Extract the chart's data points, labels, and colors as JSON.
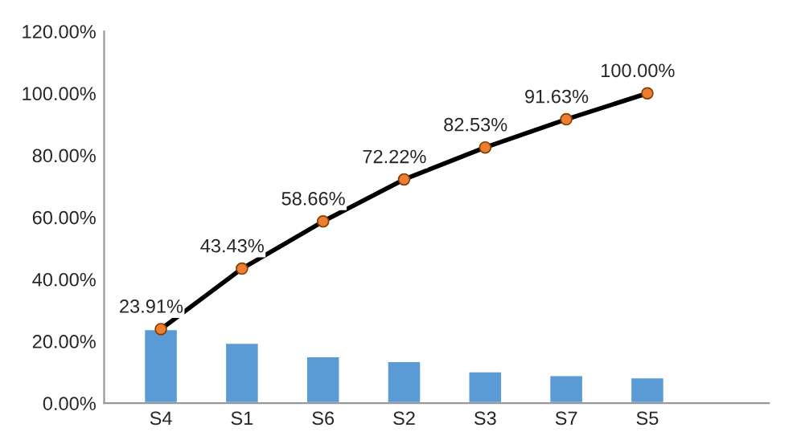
{
  "chart_data": {
    "type": "bar",
    "categories": [
      "S4",
      "S1",
      "S6",
      "S2",
      "S3",
      "S7",
      "S5",
      null
    ],
    "series": [
      {
        "color": "#5b9bd5",
        "values": [
          23.9,
          19.5,
          15.2,
          13.6,
          10.3,
          9.1,
          8.4,
          null
        ]
      },
      {
        "type": "line",
        "color": "#000000",
        "marker": "circle",
        "values": [
          23.91,
          43.43,
          58.66,
          72.22,
          82.53,
          91.63,
          100.0,
          null
        ],
        "value_labels": [
          "23.91%",
          "43.43%",
          "58.66%",
          "72.22%",
          "82.53%",
          "91.63%",
          "100.00%",
          null
        ]
      }
    ],
    "ylim": [
      0,
      120
    ],
    "yticks": [
      {
        "value": 0,
        "label": "0.00%"
      },
      {
        "value": 20,
        "label": "20.00%"
      },
      {
        "value": 40,
        "label": "40.00%"
      },
      {
        "value": 60,
        "label": "60.00%"
      },
      {
        "value": 80,
        "label": "80.00%"
      },
      {
        "value": 100,
        "label": "100.00%"
      },
      {
        "value": 120,
        "label": "120.00%"
      }
    ],
    "grid": false,
    "legend": false
  }
}
